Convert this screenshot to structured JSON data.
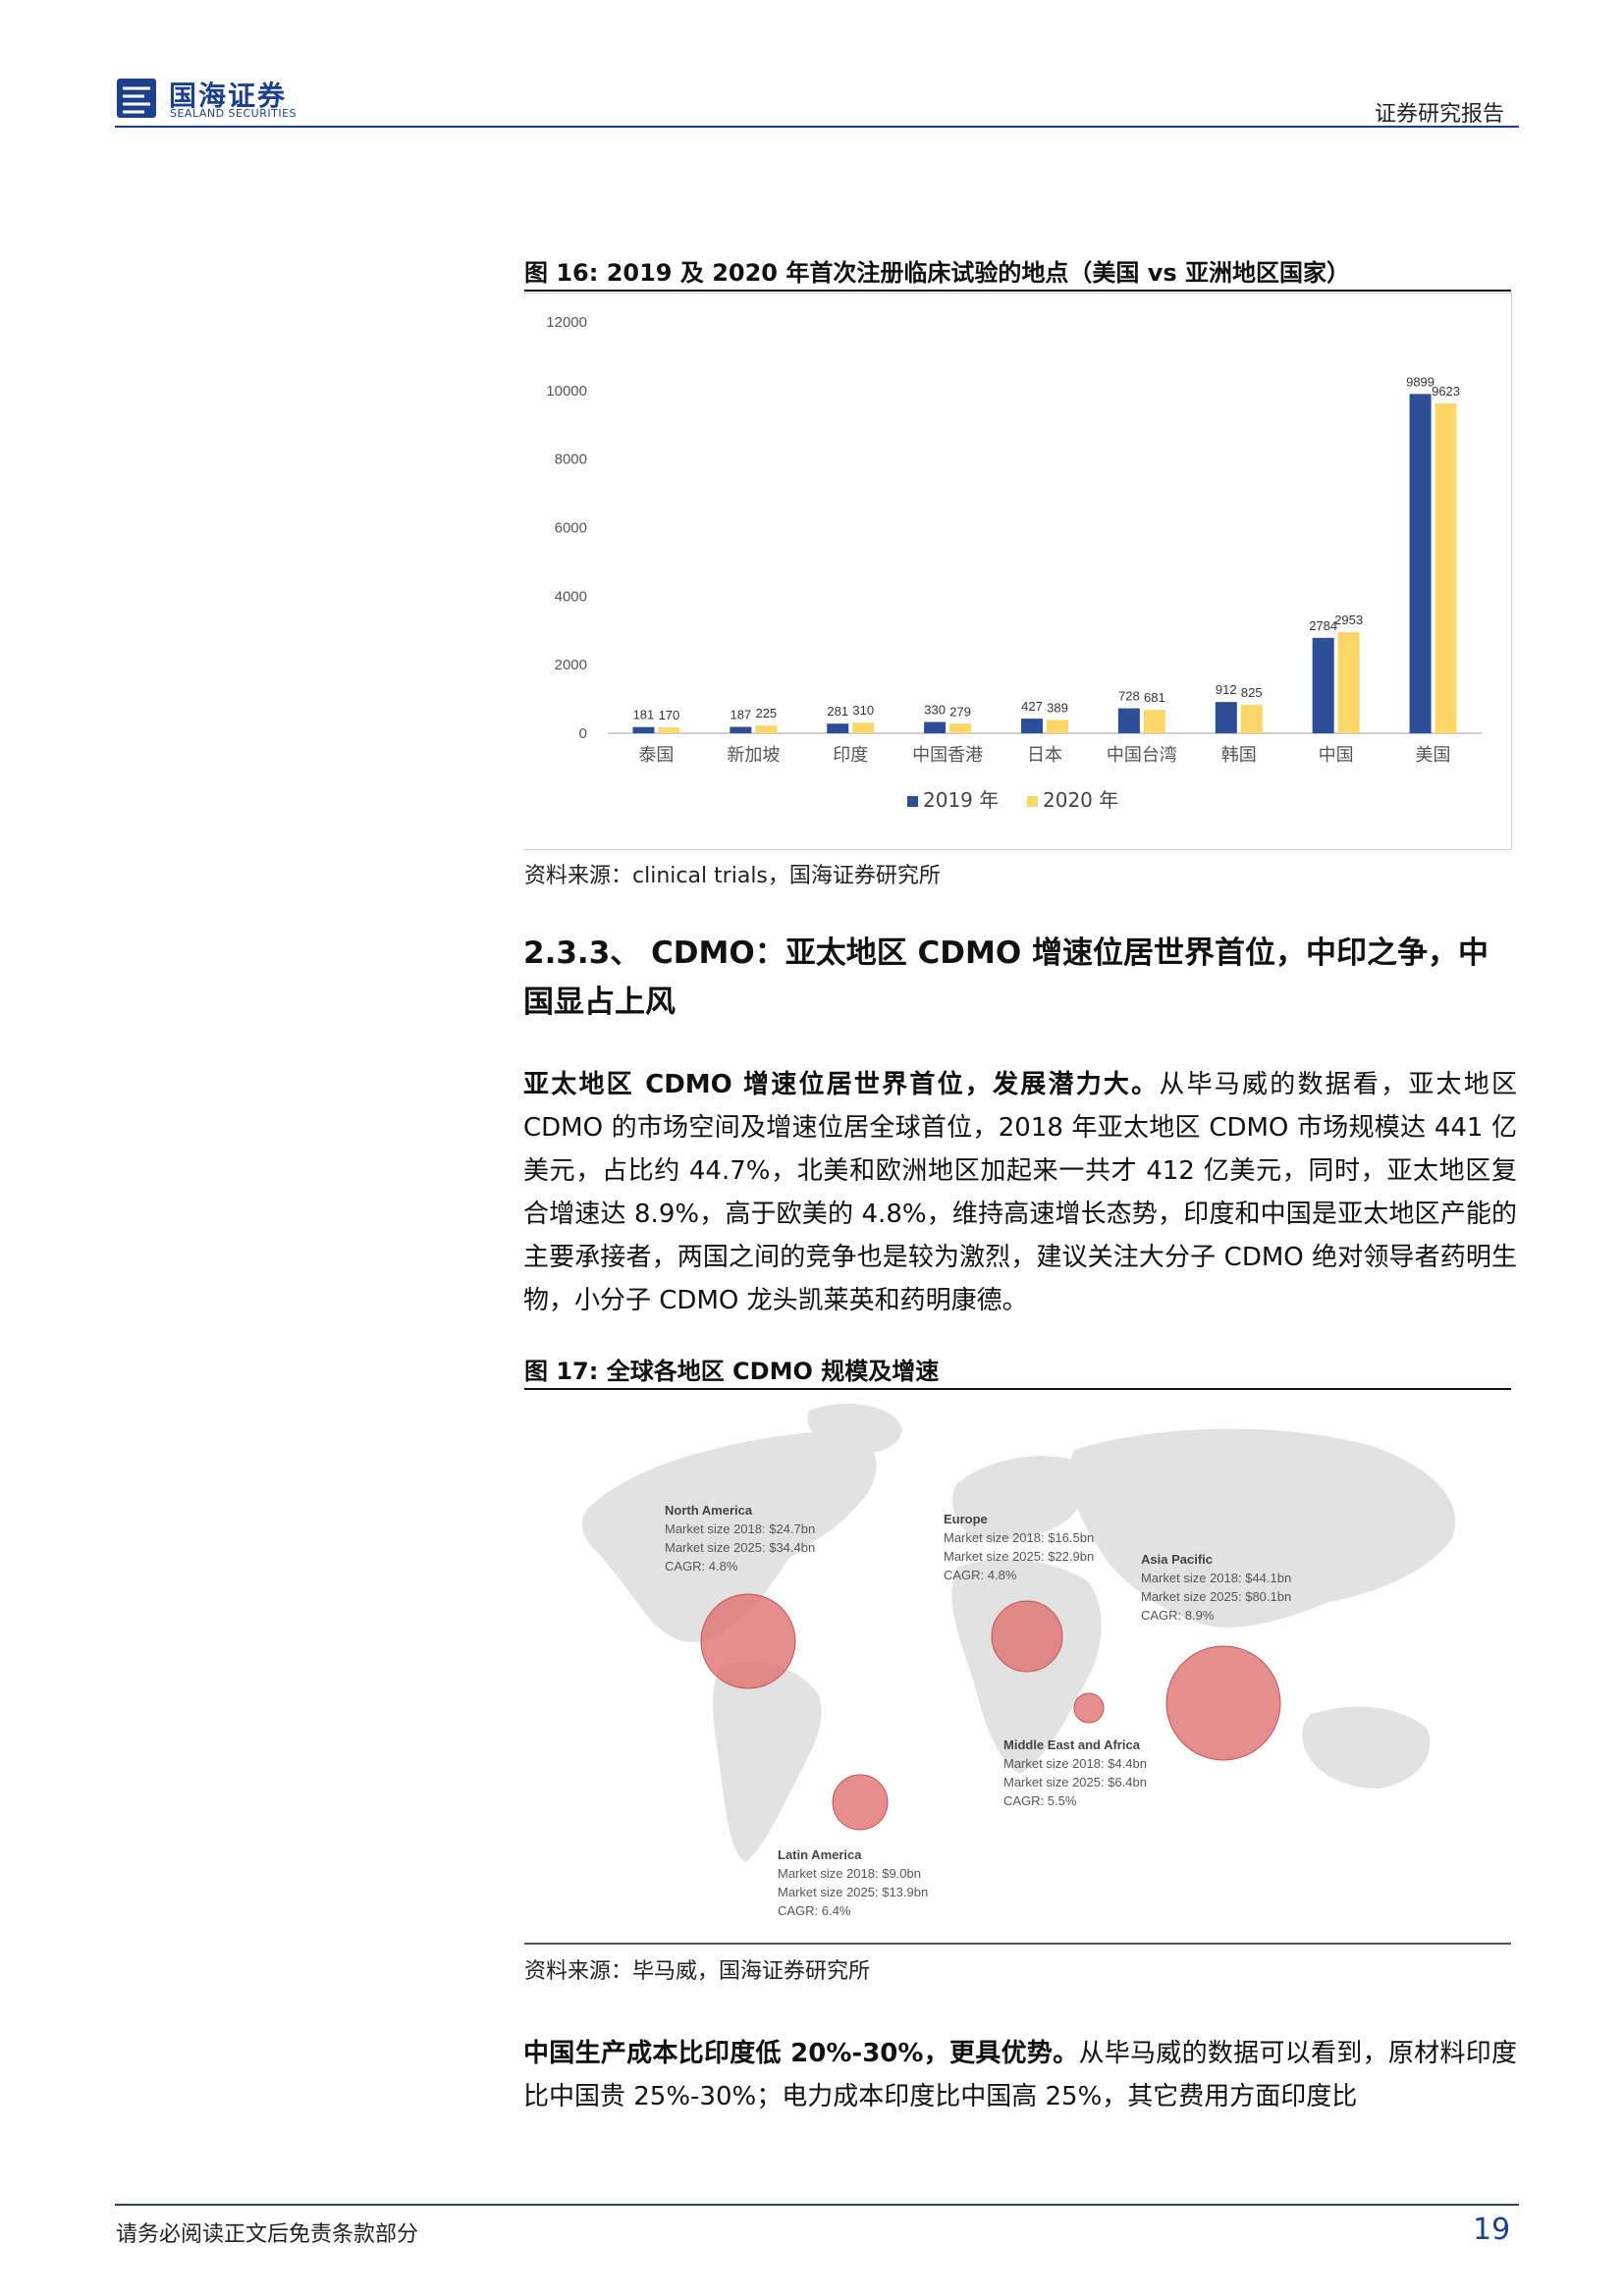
{
  "header": {
    "logo_cn": "国海证券",
    "logo_en": "SEALAND SECURITIES",
    "report_type": "证券研究报告"
  },
  "figure16": {
    "title": "图 16:  2019 及 2020 年首次注册临床试验的地点（美国 vs 亚洲地区国家）",
    "source": "资料来源：clinical trials，国海证券研究所"
  },
  "chart_data": {
    "type": "bar",
    "categories": [
      "泰国",
      "新加坡",
      "印度",
      "中国香港",
      "日本",
      "中国台湾",
      "韩国",
      "中国",
      "美国"
    ],
    "series": [
      {
        "name": "2019 年",
        "values": [
          181,
          187,
          281,
          330,
          427,
          728,
          912,
          2784,
          9899
        ],
        "color": "#2e4d97"
      },
      {
        "name": "2020 年",
        "values": [
          170,
          225,
          310,
          279,
          389,
          681,
          825,
          2953,
          9623
        ],
        "color": "#fcd667"
      }
    ],
    "yticks": [
      "0",
      "2000",
      "4000",
      "6000",
      "8000",
      "10000",
      "12000"
    ],
    "ylim": [
      0,
      12000
    ],
    "legend": "bottom",
    "grid": false
  },
  "section": {
    "heading": "2.3.3、 CDMO：亚太地区 CDMO 增速位居世界首位，中印之争，中国显占上风"
  },
  "para1": {
    "bold": "亚太地区 CDMO 增速位居世界首位，发展潜力大。",
    "text": "从毕马威的数据看，亚太地区 CDMO 的市场空间及增速位居全球首位，2018 年亚太地区 CDMO 市场规模达 441 亿美元，占比约 44.7%，北美和欧洲地区加起来一共才 412 亿美元，同时，亚太地区复合增速达 8.9%，高于欧美的 4.8%，维持高速增长态势，印度和中国是亚太地区产能的主要承接者，两国之间的竞争也是较为激烈，建议关注大分子 CDMO 绝对领导者药明生物，小分子 CDMO 龙头凯莱英和药明康德。"
  },
  "figure17": {
    "title": "图 17:  全球各地区 CDMO 规模及增速",
    "source": "资料来源：毕马威，国海证券研究所",
    "regions": [
      {
        "name": "North America",
        "size2018": "Market size 2018: $24.7bn",
        "size2025": "Market size 2025: $34.4bn",
        "cagr": "CAGR: 4.8%"
      },
      {
        "name": "Europe",
        "size2018": "Market size 2018: $16.5bn",
        "size2025": "Market size 2025: $22.9bn",
        "cagr": "CAGR: 4.8%"
      },
      {
        "name": "Asia Pacific",
        "size2018": "Market size 2018: $44.1bn",
        "size2025": "Market size 2025: $80.1bn",
        "cagr": "CAGR: 8.9%"
      },
      {
        "name": "Middle East and Africa",
        "size2018": "Market size 2018: $4.4bn",
        "size2025": "Market size 2025: $6.4bn",
        "cagr": "CAGR: 5.5%"
      },
      {
        "name": "Latin America",
        "size2018": "Market size 2018: $9.0bn",
        "size2025": "Market size 2025: $13.9bn",
        "cagr": "CAGR: 6.4%"
      }
    ]
  },
  "para2": {
    "bold": "中国生产成本比印度低 20%-30%，更具优势。",
    "text": "从毕马威的数据可以看到，原材料印度比中国贵 25%-30%；电力成本印度比中国高 25%，其它费用方面印度比"
  },
  "footer": {
    "disclaimer": "请务必阅读正文后免责条款部分",
    "page": "19"
  }
}
